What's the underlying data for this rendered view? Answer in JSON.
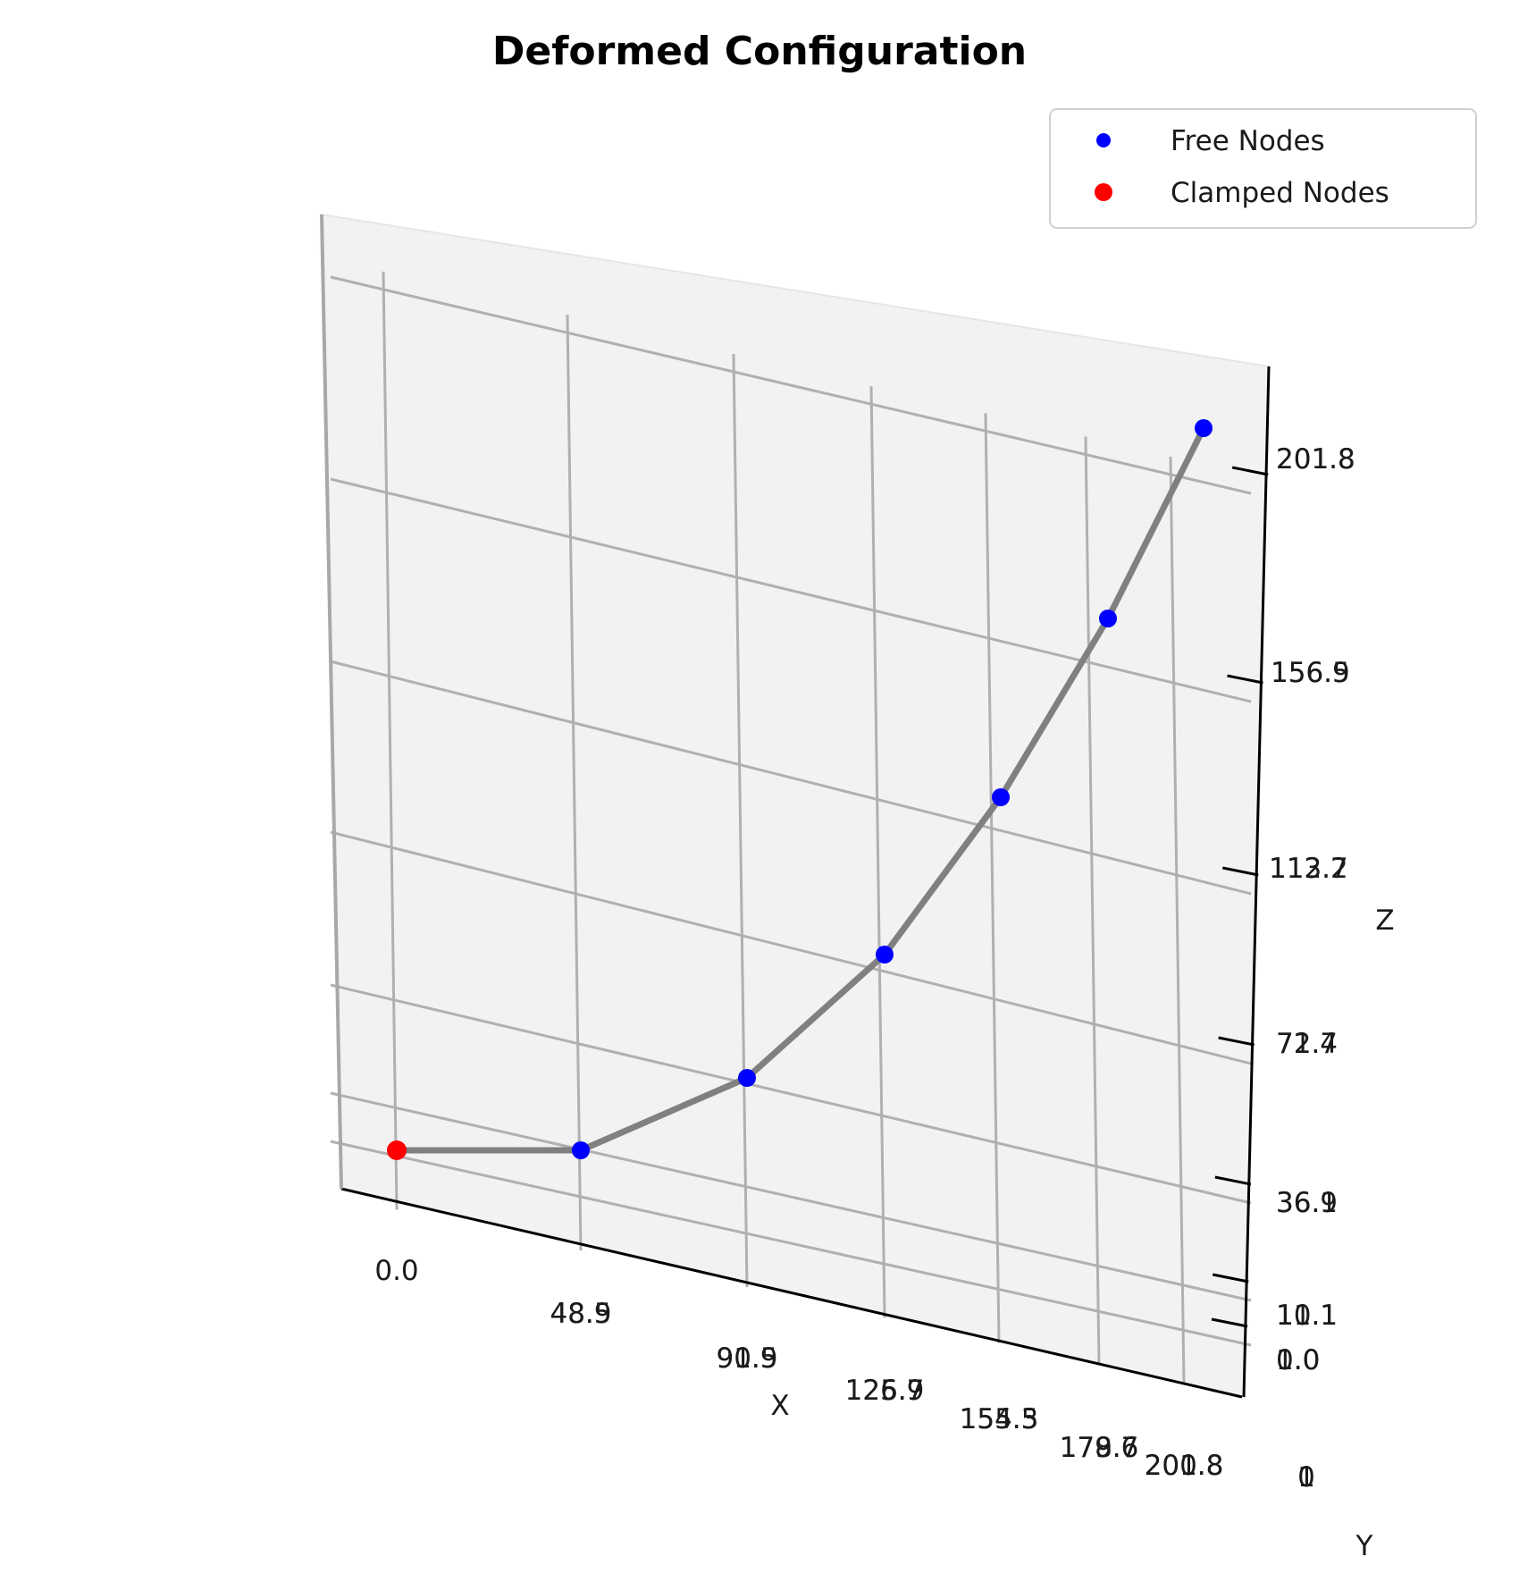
{
  "chart_data": {
    "type": "scatter",
    "title": "Deformed Configuration",
    "xlabel": "X",
    "ylabel": "Y",
    "zlabel": "Z",
    "x_ticks": [
      "0.0",
      "48.5",
      "90.9",
      "126.7",
      "154.3",
      "179.7",
      "200.8"
    ],
    "x_ticks_overlap": [
      "",
      "48.9",
      "91.5",
      "125.9",
      "155.5",
      "178.6",
      "201.8"
    ],
    "z_ticks": [
      "1.0",
      "10.1",
      "36.9",
      "71.7",
      "113.7",
      "156.9",
      "201.8"
    ],
    "z_ticks_overlap": [
      "0.0",
      "11.1",
      "36.1",
      "72.4",
      "112.2",
      "156.5",
      "201.8"
    ],
    "y_ticks": [
      "0",
      "1"
    ],
    "legend": {
      "placement": "top-right",
      "entries": [
        {
          "label": "Free Nodes",
          "color": "#0000ff"
        },
        {
          "label": "Clamped Nodes",
          "color": "#ff0000"
        }
      ]
    },
    "series": [
      {
        "name": "Clamped Nodes",
        "color": "#ff0000",
        "points": [
          [
            0.0,
            0,
            1.0
          ]
        ]
      },
      {
        "name": "Free Nodes",
        "color": "#0000ff",
        "points": [
          [
            48.5,
            0,
            1.0
          ],
          [
            90.9,
            0,
            10.1
          ],
          [
            126.7,
            0,
            36.9
          ],
          [
            154.3,
            0,
            71.7
          ],
          [
            179.7,
            0,
            113.7
          ],
          [
            200.8,
            0,
            156.9
          ]
        ]
      }
    ],
    "line_color": "#808080",
    "grid": true
  }
}
